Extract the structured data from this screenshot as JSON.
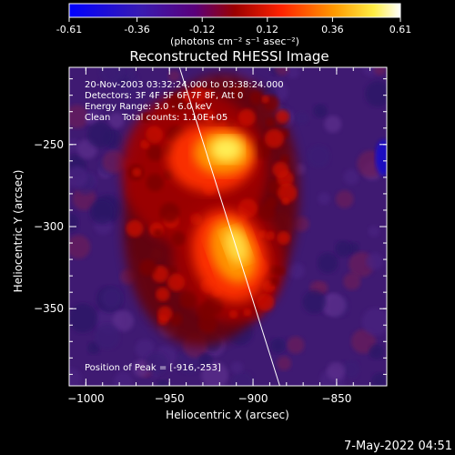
{
  "colorbar": {
    "ticks": [
      -0.61,
      -0.36,
      -0.12,
      0.12,
      0.36,
      0.61
    ],
    "tick_labels": [
      "-0.61",
      "-0.36",
      "-0.12",
      "0.12",
      "0.36",
      "0.61"
    ],
    "units_label": "(photons cm⁻² s⁻¹ asec⁻²)",
    "range": [
      -0.61,
      0.61
    ],
    "colors": [
      "#0000ff",
      "#5a007a",
      "#9a0000",
      "#ff3300",
      "#ff9900",
      "#ffffff"
    ]
  },
  "chart_data": {
    "type": "heatmap",
    "title": "Reconstructed RHESSI Image",
    "xlabel": "Heliocentric X (arcsec)",
    "ylabel": "Heliocentric Y (arcsec)",
    "xlim": [
      -1010,
      -820
    ],
    "ylim": [
      -397,
      -203
    ],
    "x_ticks": [
      -1000,
      -950,
      -900,
      -850
    ],
    "x_tick_labels": [
      "−1000",
      "−950",
      "−900",
      "−850"
    ],
    "y_ticks": [
      -250,
      -300,
      -350
    ],
    "y_tick_labels": [
      "−250",
      "−300",
      "−350"
    ],
    "sources": [
      {
        "x": -916,
        "y": -253,
        "peak": 0.61
      },
      {
        "x": -912,
        "y": -318,
        "peak": 0.52
      }
    ],
    "limb_line": [
      [
        -944,
        -203
      ],
      [
        -884,
        -397
      ]
    ]
  },
  "annotations": {
    "time_range": "20-Nov-2003 03:32:24.000 to 03:38:24.000",
    "detectors": "Detectors: 3F 4F 5F 6F 7F 8F, Att 0",
    "energy": "Energy Range: 3.0 - 6.0 keV",
    "clean": "Clean    Total counts: 1.10E+05",
    "peak": "Position of Peak = [-916,-253]"
  },
  "timestamp": "7-May-2022 04:51"
}
